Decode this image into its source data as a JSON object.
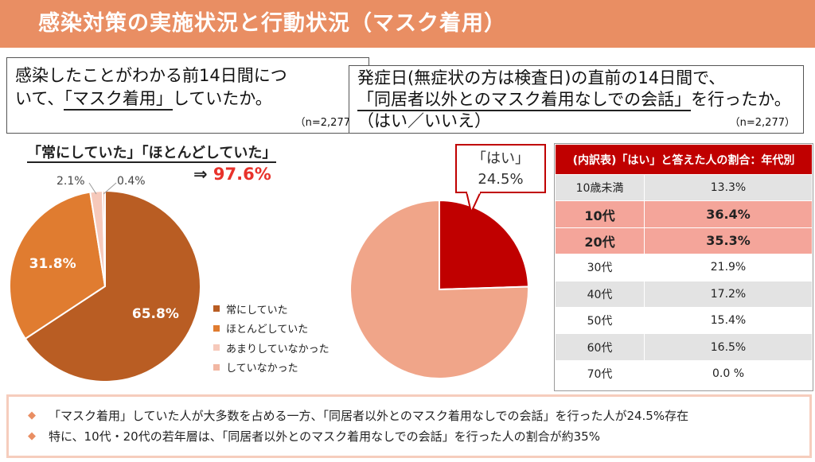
{
  "header": {
    "title": "感染対策の実施状況と行動状況（マスク着用）"
  },
  "left": {
    "question_line1": "感染したことがわかる前14日間につ",
    "question_line2_pre": "いて、",
    "question_line2_u": "「マスク着用」",
    "question_line2_post": "していたか。",
    "n": "（n=2,277）",
    "subheading": "「常にしていた」「ほとんどしていた」",
    "arrow": "⇒",
    "combined": "97.6%"
  },
  "right": {
    "question_line1": "発症日(無症状の方は検査日)の直前の14日間で、",
    "question_line2_u": "「同居者以外とのマスク着用なしでの会話」",
    "question_line2_post": "を行ったか。",
    "question_line3": "（はい／いいえ）",
    "n": "（n=2,277）",
    "callout_label": "「はい」",
    "callout_value": "24.5%"
  },
  "chart_data": [
    {
      "type": "pie",
      "title": "",
      "slices": [
        {
          "name": "常にしていた",
          "value": 65.8,
          "label": "65.8%",
          "color": "#b95d23"
        },
        {
          "name": "ほとんどしていた",
          "value": 31.8,
          "label": "31.8%",
          "color": "#e07c30"
        },
        {
          "name": "あまりしていなかった",
          "value": 2.1,
          "label": "2.1%",
          "color": "#f6c9bb"
        },
        {
          "name": "していなかった",
          "value": 0.4,
          "label": "0.4%",
          "color": "#f2b7a3"
        }
      ],
      "legend_position": "right-bottom"
    },
    {
      "type": "pie",
      "title": "",
      "slices": [
        {
          "name": "はい",
          "value": 24.5,
          "label": "24.5%",
          "color": "#c00000"
        },
        {
          "name": "いいえ",
          "value": 75.5,
          "label": "",
          "color": "#f0a589"
        }
      ],
      "legend_position": "none"
    },
    {
      "type": "table",
      "title": "(内訳表)「はい」と答えた人の割合：年代別",
      "rows": [
        {
          "age": "10歳未満",
          "pct": "13.3%",
          "highlight": false
        },
        {
          "age": "10代",
          "pct": "36.4%",
          "highlight": true
        },
        {
          "age": "20代",
          "pct": "35.3%",
          "highlight": true
        },
        {
          "age": "30代",
          "pct": "21.9%",
          "highlight": false
        },
        {
          "age": "40代",
          "pct": "17.2%",
          "highlight": false
        },
        {
          "age": "50代",
          "pct": "15.4%",
          "highlight": false
        },
        {
          "age": "60代",
          "pct": "16.5%",
          "highlight": false
        },
        {
          "age": "70代",
          "pct": "0.0 %",
          "highlight": false
        }
      ]
    }
  ],
  "summary": {
    "bullet": "◆",
    "line1": "「マスク着用」していた人が大多数を占める一方、「同居者以外とのマスク着用なしでの会話」を行った人が24.5%存在",
    "line2": "特に、10代・20代の若年層は、「同居者以外とのマスク着用なしでの会話」を行った人の割合が約35%"
  }
}
